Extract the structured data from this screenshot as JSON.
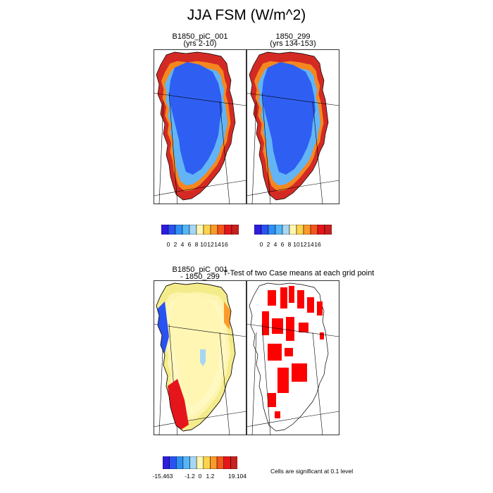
{
  "title": "JJA FSM (W/m^2)",
  "panels": [
    {
      "title": "B1850_piC_001",
      "subtitle": "(yrs 2-10)"
    },
    {
      "title": "1850_299",
      "subtitle": "(yrs 134-153)"
    },
    {
      "title": "B1850_piC_001",
      "subtitle": "- 1850_299"
    },
    {
      "title": "T-Test of two Case means at each grid point",
      "subtitle": ""
    }
  ],
  "colorbar_top": {
    "colors": [
      "#2e1de0",
      "#2a52f0",
      "#2f8ff5",
      "#55b6f8",
      "#a6d6f3",
      "#fff7b0",
      "#fdd34d",
      "#fb9a2b",
      "#f5561d",
      "#e5161b",
      "#c8201e"
    ],
    "ticks": [
      "0",
      "2",
      "4",
      "6",
      "8",
      "10",
      "12",
      "14",
      "16"
    ]
  },
  "colorbar_bottom": {
    "colors": [
      "#2e1de0",
      "#2a52f0",
      "#2f8ff5",
      "#55b6f8",
      "#a6d6f3",
      "#fff7b0",
      "#fdd34d",
      "#fb9a2b",
      "#f5561d",
      "#e5161b",
      "#c8201e"
    ],
    "ticks": [
      "-15.463",
      "-1.2",
      "0",
      "1.2",
      "19.104"
    ]
  },
  "note": "Cells are significant at 0.1 level",
  "chart_data": [
    {
      "type": "heatmap",
      "title": "B1850_piC_001",
      "subtitle": "(yrs 2-10)",
      "colorbar_ticks": [
        0,
        2,
        4,
        6,
        8,
        10,
        12,
        14,
        16
      ]
    },
    {
      "type": "heatmap",
      "title": "1850_299",
      "subtitle": "(yrs 134-153)",
      "colorbar_ticks": [
        0,
        2,
        4,
        6,
        8,
        10,
        12,
        14,
        16
      ]
    },
    {
      "type": "heatmap",
      "title": "B1850_piC_001",
      "subtitle": "- 1850_299",
      "colorbar_ticks": [
        -15.463,
        -1.2,
        0,
        1.2,
        19.104
      ]
    },
    {
      "type": "heatmap",
      "title": "T-Test of two Case means at each grid point",
      "note": "Cells are significant at 0.1 level"
    }
  ]
}
